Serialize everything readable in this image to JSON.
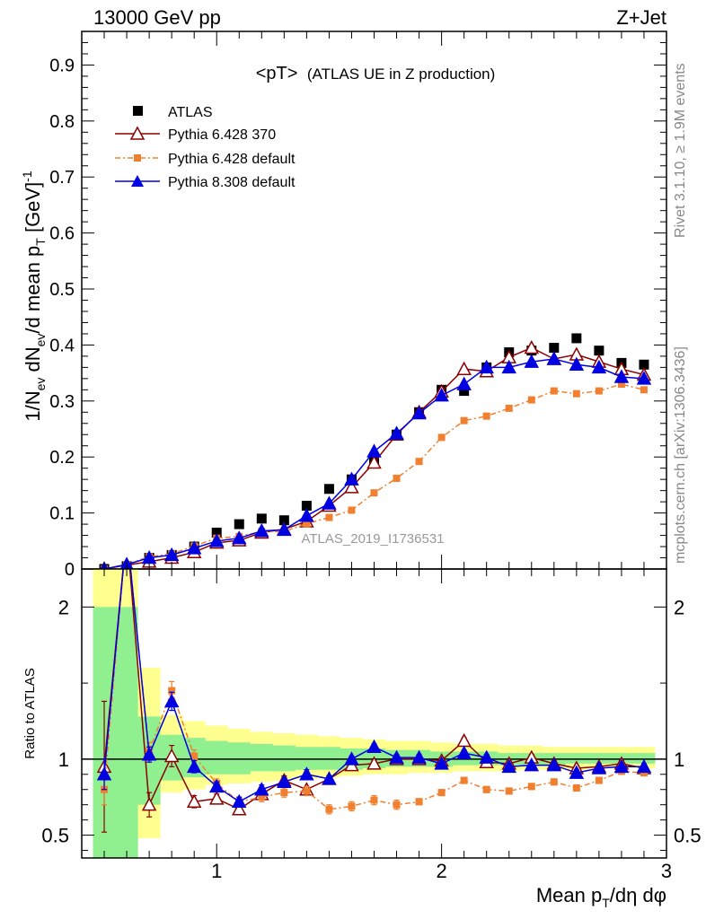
{
  "header": {
    "left": "13000 GeV pp",
    "right": "Z+Jet"
  },
  "side_labels": {
    "rivet": "Rivet 3.1.10, ≥ 1.9M events",
    "mcplots": "mcplots.cern.ch [arXiv:1306.3436]"
  },
  "colors": {
    "atlas": "#000000",
    "py6_370": "#8b0000",
    "py6_default": "#f08030",
    "py8_default": "#0000e0",
    "band_green": "#90f090",
    "band_yellow": "#ffff90"
  },
  "chart_data": [
    {
      "type": "scatter",
      "panel": "main",
      "title": "<pT> (ATLAS UE in Z production)",
      "title_main": "<pT>",
      "title_sub": "(ATLAS UE in Z production)",
      "ylabel": "1/N_ev dN_ev/d mean p_T [GeV]^-1",
      "xlim": [
        0.4,
        3.0
      ],
      "ylim": [
        0,
        0.96
      ],
      "yticks": [
        0,
        0.1,
        0.2,
        0.3,
        0.4,
        0.5,
        0.6,
        0.7,
        0.8,
        0.9
      ],
      "ytick_labels": [
        "0",
        "0.1",
        "0.2",
        "0.3",
        "0.4",
        "0.5",
        "0.6",
        "0.7",
        "0.8",
        "0.9"
      ],
      "watermark": "ATLAS_2019_I1736531",
      "legend": [
        "ATLAS",
        "Pythia 6.428 370",
        "Pythia 6.428 default",
        "Pythia 8.308 default"
      ],
      "legend_position": "top-left",
      "x": [
        0.5,
        0.6,
        0.7,
        0.8,
        0.9,
        1.0,
        1.1,
        1.2,
        1.3,
        1.4,
        1.5,
        1.6,
        1.7,
        1.8,
        1.9,
        2.0,
        2.1,
        2.2,
        2.3,
        2.4,
        2.5,
        2.6,
        2.7,
        2.8,
        2.9
      ],
      "series": [
        {
          "name": "ATLAS",
          "values": [
            0.0,
            0.005,
            0.02,
            0.025,
            0.04,
            0.065,
            0.08,
            0.09,
            0.087,
            0.113,
            0.143,
            0.16,
            0.195,
            0.24,
            0.28,
            0.32,
            0.318,
            0.36,
            0.387,
            0.39,
            0.395,
            0.412,
            0.39,
            0.368,
            0.365
          ]
        },
        {
          "name": "Pythia 6.428 370",
          "values": [
            0.0,
            0.007,
            0.013,
            0.02,
            0.03,
            0.047,
            0.051,
            0.065,
            0.071,
            0.085,
            0.113,
            0.146,
            0.19,
            0.24,
            0.28,
            0.317,
            0.357,
            0.353,
            0.378,
            0.395,
            0.375,
            0.383,
            0.37,
            0.357,
            0.347
          ]
        },
        {
          "name": "Pythia 6.428 default",
          "values": [
            0.0,
            0.008,
            0.022,
            0.027,
            0.041,
            0.055,
            0.058,
            0.067,
            0.067,
            0.081,
            0.092,
            0.105,
            0.136,
            0.162,
            0.192,
            0.235,
            0.265,
            0.273,
            0.287,
            0.302,
            0.318,
            0.313,
            0.318,
            0.33,
            0.32
          ]
        },
        {
          "name": "Pythia 8.308 default",
          "values": [
            0.0,
            0.008,
            0.02,
            0.025,
            0.037,
            0.05,
            0.055,
            0.068,
            0.07,
            0.095,
            0.117,
            0.16,
            0.21,
            0.242,
            0.278,
            0.31,
            0.33,
            0.36,
            0.36,
            0.37,
            0.375,
            0.365,
            0.36,
            0.343,
            0.34
          ]
        }
      ]
    },
    {
      "type": "line",
      "panel": "ratio",
      "ylabel": "Ratio to ATLAS",
      "xlabel": "Mean p_T/dη dφ",
      "xlim": [
        0.4,
        3.0
      ],
      "ylim": [
        0.35,
        2.25
      ],
      "xticks": [
        1,
        2,
        3
      ],
      "xtick_labels": [
        "1",
        "2",
        "3"
      ],
      "yticks": [
        0.5,
        1,
        2
      ],
      "ytick_labels": [
        "0.5",
        "1",
        "2"
      ],
      "x": [
        0.5,
        0.6,
        0.7,
        0.8,
        0.9,
        1.0,
        1.1,
        1.2,
        1.3,
        1.4,
        1.5,
        1.6,
        1.7,
        1.8,
        1.9,
        2.0,
        2.1,
        2.2,
        2.3,
        2.4,
        2.5,
        2.6,
        2.7,
        2.8,
        2.9
      ],
      "bands": {
        "green": [
          [
            0.3,
            2.0
          ],
          [
            0.3,
            2.0
          ],
          [
            0.7,
            1.28
          ],
          [
            0.86,
            1.16
          ],
          [
            0.88,
            1.14
          ],
          [
            0.9,
            1.12
          ],
          [
            0.9,
            1.11
          ],
          [
            0.92,
            1.1
          ],
          [
            0.92,
            1.09
          ],
          [
            0.93,
            1.08
          ],
          [
            0.93,
            1.08
          ],
          [
            0.93,
            1.07
          ],
          [
            0.94,
            1.07
          ],
          [
            0.95,
            1.06
          ],
          [
            0.95,
            1.06
          ],
          [
            0.95,
            1.05
          ],
          [
            0.96,
            1.05
          ],
          [
            0.96,
            1.05
          ],
          [
            0.96,
            1.04
          ],
          [
            0.96,
            1.04
          ],
          [
            0.96,
            1.04
          ],
          [
            0.97,
            1.04
          ],
          [
            0.97,
            1.04
          ],
          [
            0.97,
            1.04
          ],
          [
            0.97,
            1.04
          ]
        ],
        "yellow": [
          [
            0.3,
            2.25
          ],
          [
            0.3,
            2.25
          ],
          [
            0.48,
            1.6
          ],
          [
            0.78,
            1.29
          ],
          [
            0.8,
            1.25
          ],
          [
            0.83,
            1.22
          ],
          [
            0.84,
            1.2
          ],
          [
            0.85,
            1.18
          ],
          [
            0.86,
            1.17
          ],
          [
            0.87,
            1.16
          ],
          [
            0.88,
            1.15
          ],
          [
            0.89,
            1.14
          ],
          [
            0.9,
            1.13
          ],
          [
            0.9,
            1.12
          ],
          [
            0.91,
            1.12
          ],
          [
            0.91,
            1.11
          ],
          [
            0.92,
            1.1
          ],
          [
            0.92,
            1.1
          ],
          [
            0.92,
            1.09
          ],
          [
            0.93,
            1.09
          ],
          [
            0.93,
            1.08
          ],
          [
            0.93,
            1.08
          ],
          [
            0.94,
            1.08
          ],
          [
            0.94,
            1.08
          ],
          [
            0.94,
            1.08
          ]
        ]
      },
      "series": [
        {
          "name": "Pythia 6.428 370",
          "values": [
            0.95,
            2.5,
            0.7,
            1.02,
            0.72,
            0.74,
            0.67,
            0.77,
            0.86,
            0.8,
            0.87,
            0.96,
            0.97,
            1.0,
            1.0,
            0.99,
            1.12,
            0.98,
            0.97,
            1.01,
            0.97,
            0.94,
            0.95,
            0.97,
            0.94
          ],
          "errors": [
            0.43,
            0.2,
            0.08,
            0.07,
            0.04,
            0.03,
            0.03,
            0.03,
            0.03,
            0.02,
            0.02,
            0.02,
            0.02,
            0.02,
            0.02,
            0.02,
            0.02,
            0.02,
            0.02,
            0.02,
            0.02,
            0.02,
            0.02,
            0.02,
            0.02
          ]
        },
        {
          "name": "Pythia 6.428 default",
          "values": [
            0.8,
            2.5,
            1.05,
            1.45,
            1.02,
            0.84,
            0.72,
            0.75,
            0.78,
            0.79,
            0.67,
            0.69,
            0.73,
            0.7,
            0.72,
            0.78,
            0.86,
            0.8,
            0.79,
            0.82,
            0.85,
            0.81,
            0.86,
            0.92,
            0.91
          ],
          "errors": [
            0.1,
            0.2,
            0.06,
            0.06,
            0.04,
            0.03,
            0.03,
            0.03,
            0.03,
            0.03,
            0.03,
            0.03,
            0.03,
            0.03,
            0.02,
            0.02,
            0.02,
            0.02,
            0.02,
            0.02,
            0.02,
            0.02,
            0.02,
            0.02,
            0.02
          ]
        },
        {
          "name": "Pythia 8.308 default",
          "values": [
            0.9,
            2.5,
            1.03,
            1.38,
            0.95,
            0.82,
            0.72,
            0.8,
            0.85,
            0.9,
            0.87,
            1.0,
            1.08,
            1.01,
            1.01,
            0.97,
            1.04,
            1.01,
            0.95,
            0.96,
            0.96,
            0.91,
            0.94,
            0.95,
            0.95
          ],
          "errors": [
            0.1,
            0.2,
            0.05,
            0.06,
            0.04,
            0.03,
            0.03,
            0.03,
            0.03,
            0.03,
            0.02,
            0.02,
            0.02,
            0.02,
            0.02,
            0.02,
            0.02,
            0.02,
            0.02,
            0.02,
            0.02,
            0.02,
            0.02,
            0.02,
            0.02
          ]
        }
      ]
    }
  ]
}
